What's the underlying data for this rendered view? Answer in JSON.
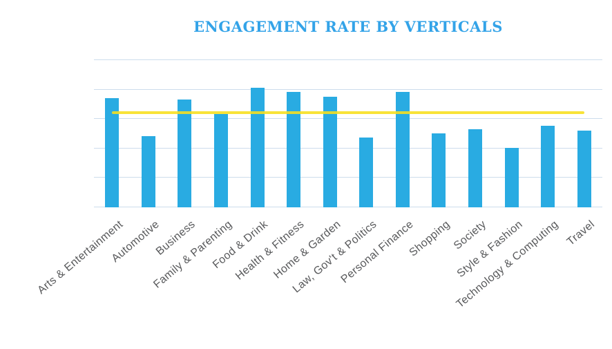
{
  "page": {
    "background_color": "#ffffff"
  },
  "chart_data": {
    "type": "bar",
    "title": "ENGAGEMENT RATE BY VERTICALS",
    "categories": [
      "Arts & Entertainment",
      "Automotive",
      "Business",
      "Family & Parenting",
      "Food & Drink",
      "Health & Fitness",
      "Home & Garden",
      "Law, Gov't & Politics",
      "Personal Finance",
      "Shopping",
      "Society",
      "Style & Fashion",
      "Technology & Computing",
      "Travel"
    ],
    "values": [
      3.7,
      2.4,
      3.65,
      3.15,
      4.05,
      3.9,
      3.75,
      2.35,
      3.9,
      2.5,
      2.65,
      2.0,
      2.75,
      2.6
    ],
    "benchmark_line": {
      "value": 3.2,
      "color": "#F7DF1E",
      "spans": "first bar center to last bar center"
    },
    "xlabel": "",
    "ylabel": "",
    "ylim": [
      0,
      5
    ],
    "y_tick_labels_visible": false,
    "gridlines": {
      "count": 6,
      "color": "#CCDCEC",
      "orientation": "horizontal"
    },
    "legend": "none",
    "colors": {
      "bar": "#29ABE2",
      "title": "#33A3E8",
      "axis_label": "#58595B"
    },
    "x_label_rotation_deg": -40
  }
}
